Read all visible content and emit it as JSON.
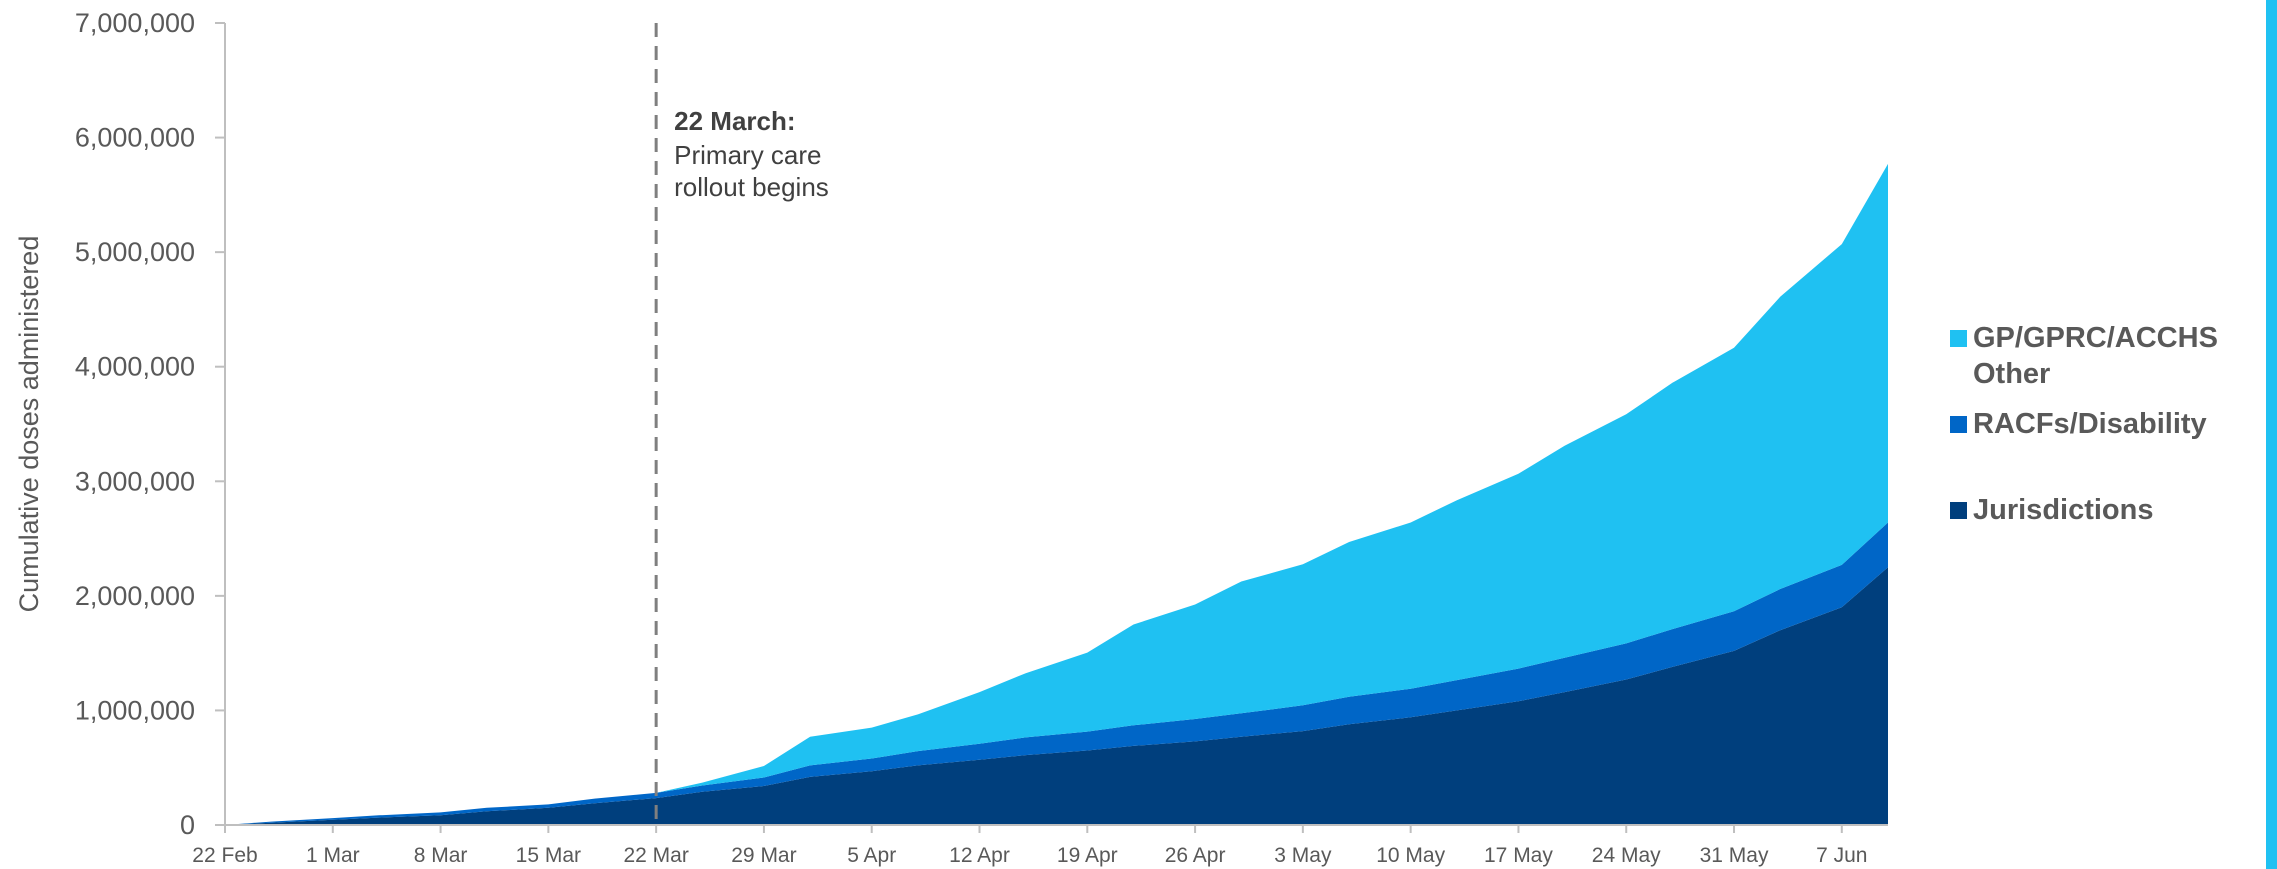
{
  "chart_data": {
    "type": "area",
    "stacked": true,
    "ylabel": "Cumulative doses administered",
    "xlabel": "",
    "ylim": [
      0,
      7000000
    ],
    "yticks": [
      0,
      1000000,
      2000000,
      3000000,
      4000000,
      5000000,
      6000000,
      7000000
    ],
    "ytick_labels": [
      "0",
      "1,000,000",
      "2,000,000",
      "3,000,000",
      "4,000,000",
      "5,000,000",
      "6,000,000",
      "7,000,000"
    ],
    "xtick_labels": [
      "22 Feb",
      "1 Mar",
      "8 Mar",
      "15 Mar",
      "22 Mar",
      "29 Mar",
      "5 Apr",
      "12 Apr",
      "19 Apr",
      "26 Apr",
      "3 May",
      "10 May",
      "17 May",
      "24 May",
      "31 May",
      "7 Jun"
    ],
    "x": [
      "22 Feb",
      "25 Feb",
      "1 Mar",
      "4 Mar",
      "8 Mar",
      "11 Mar",
      "15 Mar",
      "18 Mar",
      "22 Mar",
      "25 Mar",
      "29 Mar",
      "1 Apr",
      "5 Apr",
      "8 Apr",
      "12 Apr",
      "15 Apr",
      "19 Apr",
      "22 Apr",
      "26 Apr",
      "29 Apr",
      "3 May",
      "6 May",
      "10 May",
      "13 May",
      "17 May",
      "20 May",
      "24 May",
      "27 May",
      "31 May",
      "3 Jun",
      "7 Jun",
      "10 Jun"
    ],
    "series": [
      {
        "name": "Jurisdictions",
        "color": "#003f7d",
        "values": [
          0,
          20000,
          45000,
          65000,
          85000,
          120000,
          150000,
          190000,
          235000,
          290000,
          340000,
          420000,
          470000,
          520000,
          570000,
          610000,
          650000,
          690000,
          730000,
          770000,
          820000,
          880000,
          940000,
          1000000,
          1080000,
          1160000,
          1270000,
          1380000,
          1520000,
          1700000,
          1900000,
          2250000
        ]
      },
      {
        "name": "RACFs/Disability",
        "color": "#0066c7",
        "values": [
          0,
          10000,
          15000,
          20000,
          25000,
          30000,
          30000,
          40000,
          45000,
          55000,
          75000,
          100000,
          110000,
          125000,
          140000,
          155000,
          165000,
          180000,
          195000,
          205000,
          225000,
          240000,
          250000,
          265000,
          285000,
          300000,
          315000,
          330000,
          345000,
          360000,
          370000,
          390000
        ]
      },
      {
        "name": "GP/GPRC/ACCHS Other",
        "color": "#1fc1f2",
        "values": [
          0,
          0,
          0,
          0,
          0,
          0,
          0,
          0,
          0,
          25000,
          100000,
          250000,
          270000,
          320000,
          450000,
          560000,
          690000,
          880000,
          1000000,
          1150000,
          1230000,
          1350000,
          1450000,
          1570000,
          1700000,
          1850000,
          2000000,
          2150000,
          2300000,
          2550000,
          2800000,
          3130000
        ]
      }
    ],
    "legend_position": "right",
    "annotation": {
      "x": "22 Mar",
      "title": "22 March:",
      "lines": [
        "Primary care",
        "rollout begins"
      ]
    },
    "grid": false
  }
}
